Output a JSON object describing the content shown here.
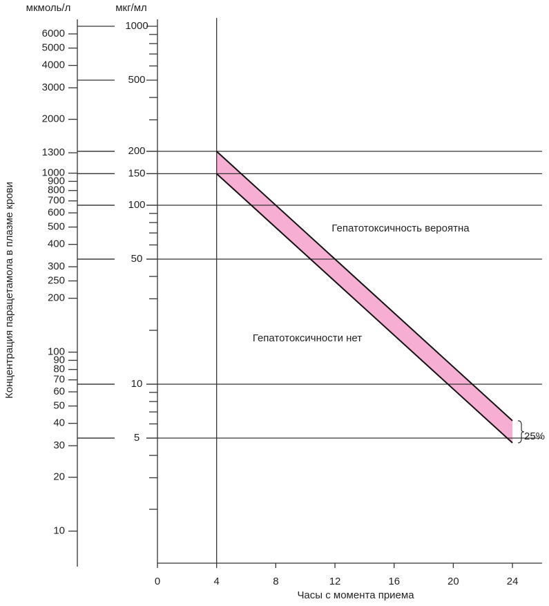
{
  "chart_data": {
    "type": "band",
    "ylabel": "Концентрация парацетамола в плазме крови",
    "xlabel": "Часы с момента приема",
    "y_unit": "мкг/мл",
    "y2_unit": "мкмоль/л",
    "log_scale": true,
    "xlim": [
      0,
      26
    ],
    "xticks": [
      0,
      4,
      8,
      12,
      16,
      20,
      24
    ],
    "ylim": [
      1,
      1000
    ],
    "yticks": [
      1000,
      500,
      200,
      150,
      100,
      50,
      10,
      5
    ],
    "yminorticks": [
      900,
      800,
      700,
      600,
      400,
      300,
      90,
      80,
      70,
      60,
      40,
      30,
      20,
      9,
      8,
      7,
      6,
      4,
      3,
      2
    ],
    "y2lim": [
      6.62,
      6620
    ],
    "y2ticks": [
      6000,
      5000,
      4000,
      3000,
      2000,
      1300,
      1000,
      900,
      800,
      700,
      600,
      500,
      400,
      300,
      250,
      200,
      100,
      90,
      80,
      70,
      60,
      50,
      40,
      30,
      20,
      10
    ],
    "hlines": [
      200,
      150,
      100,
      50,
      10,
      5
    ],
    "vline": 4,
    "band_color": "#f6aed2",
    "series": [
      {
        "color": "#111111",
        "x": [
          4,
          24
        ],
        "values": [
          200,
          6.25
        ]
      },
      {
        "color": "#111111",
        "x": [
          4,
          24
        ],
        "values": [
          150,
          4.7
        ]
      }
    ],
    "annotations": [
      "Гепатотоксичность вероятна",
      "Гепатотоксичности нет",
      "25%"
    ]
  }
}
